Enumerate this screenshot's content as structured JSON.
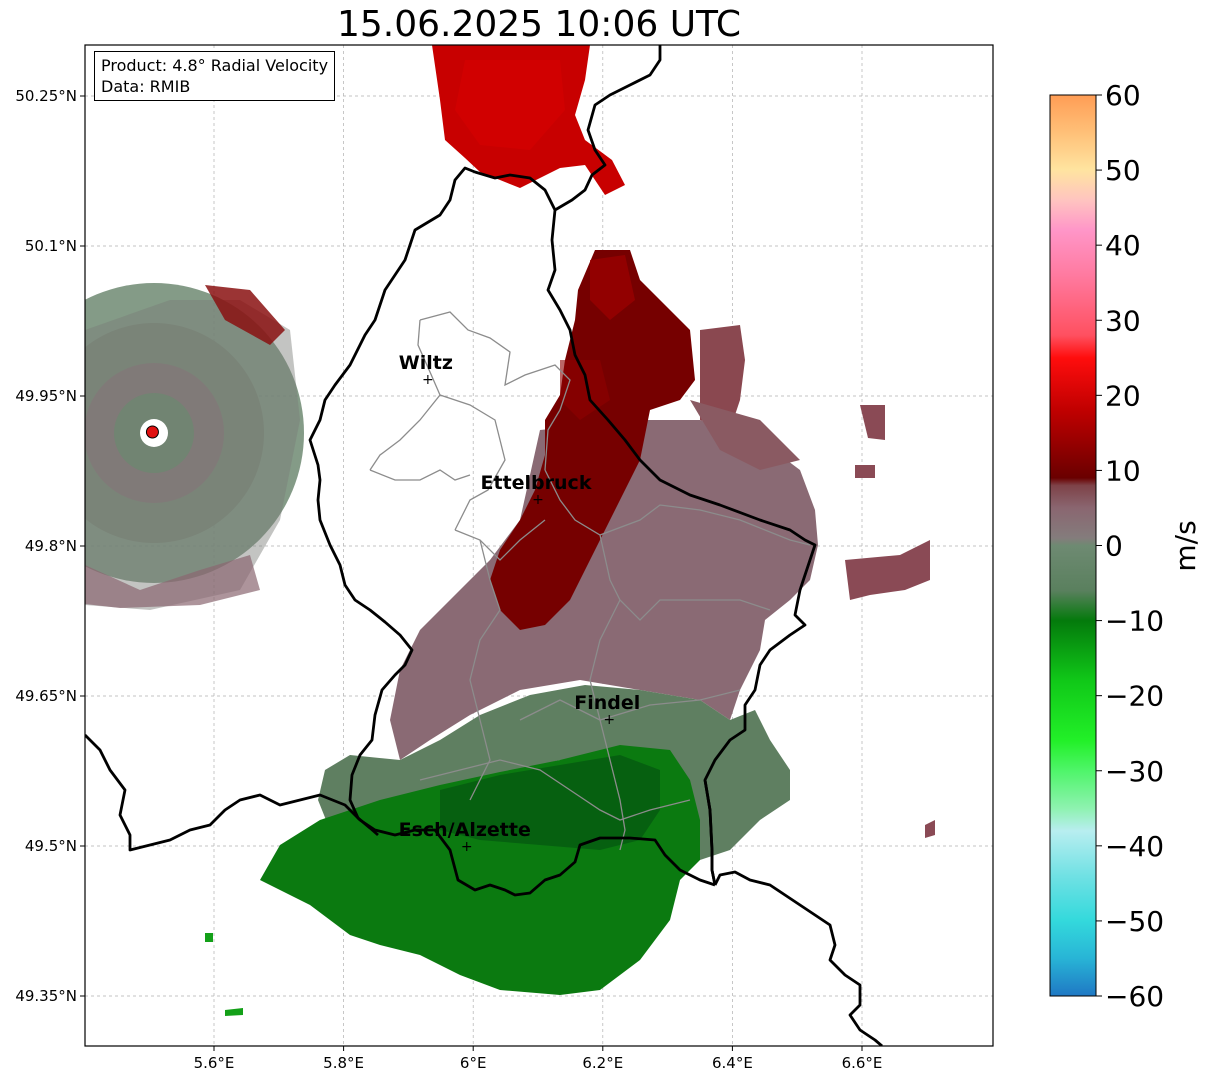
{
  "title": "15.06.2025 10:06 UTC",
  "info": {
    "product": "Product: 4.8° Radial Velocity",
    "data": "Data: RMIB"
  },
  "lat_ticks": [
    "50.25°N",
    "50.1°N",
    "49.95°N",
    "49.8°N",
    "49.65°N",
    "49.5°N",
    "49.35°N"
  ],
  "lon_ticks": [
    "5.6°E",
    "5.8°E",
    "6°E",
    "6.2°E",
    "6.4°E",
    "6.6°E"
  ],
  "cities": [
    {
      "name": "Wiltz",
      "lon": 5.93,
      "lat": 49.967
    },
    {
      "name": "Ettelbruck",
      "lon": 6.1,
      "lat": 49.847
    },
    {
      "name": "Findel",
      "lon": 6.21,
      "lat": 49.627
    },
    {
      "name": "Esch/Alzette",
      "lon": 5.99,
      "lat": 49.5
    }
  ],
  "radar_site": {
    "lon": 5.505,
    "lat": 49.914
  },
  "colorbar": {
    "unit": "m/s",
    "min": -60,
    "max": 60,
    "ticks": [
      "60",
      "50",
      "40",
      "30",
      "20",
      "10",
      "0",
      "−10",
      "−20",
      "−30",
      "−40",
      "−50",
      "−60"
    ],
    "stops": [
      {
        "v": -60,
        "c": "#1f78c4"
      },
      {
        "v": -55,
        "c": "#28b4d6"
      },
      {
        "v": -50,
        "c": "#33d9dc"
      },
      {
        "v": -44,
        "c": "#70e1e4"
      },
      {
        "v": -38,
        "c": "#b8eef0"
      },
      {
        "v": -35,
        "c": "#8ef2b0"
      },
      {
        "v": -30,
        "c": "#4ff56a"
      },
      {
        "v": -26,
        "c": "#22f028"
      },
      {
        "v": -18,
        "c": "#10c818"
      },
      {
        "v": -10,
        "c": "#047a0c"
      },
      {
        "v": -6,
        "c": "#5a805e"
      },
      {
        "v": 0,
        "c": "#6e8a72"
      },
      {
        "v": 1,
        "c": "#847c7c"
      },
      {
        "v": 5,
        "c": "#8a6670"
      },
      {
        "v": 8,
        "c": "#7e4248"
      },
      {
        "v": 9,
        "c": "#6a0000"
      },
      {
        "v": 18,
        "c": "#c00000"
      },
      {
        "v": 25,
        "c": "#ff0d0d"
      },
      {
        "v": 28,
        "c": "#ff5060"
      },
      {
        "v": 36,
        "c": "#ff7aa0"
      },
      {
        "v": 42,
        "c": "#ff96c8"
      },
      {
        "v": 46,
        "c": "#ffc4c0"
      },
      {
        "v": 50,
        "c": "#ffe4a0"
      },
      {
        "v": 55,
        "c": "#ffc078"
      },
      {
        "v": 60,
        "c": "#ff9d55"
      }
    ]
  },
  "colors": {
    "border": "#000000",
    "canton": "#8c8c8c",
    "grid": "#b0b0b0"
  }
}
